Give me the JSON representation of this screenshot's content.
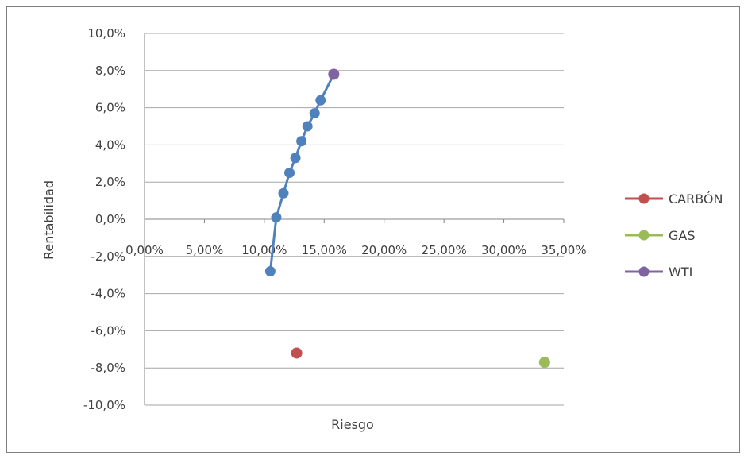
{
  "chart_data": {
    "type": "scatter",
    "title": "",
    "xlabel": "Riesgo",
    "ylabel": "Rentabilidad",
    "xlim": [
      0,
      35
    ],
    "ylim": [
      -10,
      10
    ],
    "x_ticks": [
      "0,00%",
      "5,00%",
      "10,00%",
      "15,00%",
      "20,00%",
      "25,00%",
      "30,00%",
      "35,00%"
    ],
    "y_ticks": [
      "10,0%",
      "8,0%",
      "6,0%",
      "4,0%",
      "2,0%",
      "0,0%",
      "-2,0%",
      "-4,0%",
      "-6,0%",
      "-8,0%",
      "-10,0%"
    ],
    "grid": "horizontal",
    "legend_position": "right",
    "frontier": {
      "color": "#4f81bd",
      "points": [
        {
          "x": 10.5,
          "y": -2.8
        },
        {
          "x": 11.0,
          "y": 0.1
        },
        {
          "x": 11.6,
          "y": 1.4
        },
        {
          "x": 12.1,
          "y": 2.5
        },
        {
          "x": 12.6,
          "y": 3.3
        },
        {
          "x": 13.1,
          "y": 4.2
        },
        {
          "x": 13.6,
          "y": 5.0
        },
        {
          "x": 14.2,
          "y": 5.7
        },
        {
          "x": 14.7,
          "y": 6.4
        },
        {
          "x": 15.8,
          "y": 7.8
        }
      ]
    },
    "series": [
      {
        "name": "CARBÓN",
        "color": "#c0504d",
        "points": [
          {
            "x": 12.7,
            "y": -7.2
          }
        ]
      },
      {
        "name": "GAS",
        "color": "#9bbb59",
        "points": [
          {
            "x": 33.4,
            "y": -7.7
          }
        ]
      },
      {
        "name": "WTI",
        "color": "#8064a2",
        "points": [
          {
            "x": 15.8,
            "y": 7.8
          }
        ]
      }
    ]
  }
}
